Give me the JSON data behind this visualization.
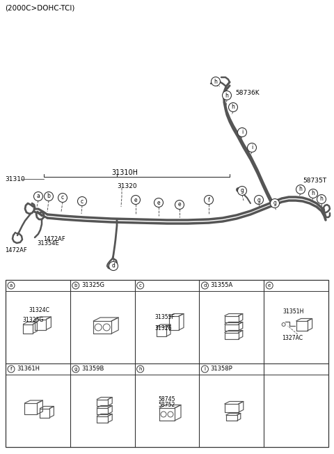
{
  "title": "(2000C>DOHC-TCI)",
  "bg_color": "#ffffff",
  "line_color": "#555555",
  "text_color": "#000000",
  "main_label": "31310H",
  "left_label": "31310",
  "mid_label": "31320",
  "label_58736K": "58736K",
  "label_58735T": "58735T",
  "label_1472AF_top": "1472AF",
  "label_1472AF_bot": "1472AF",
  "label_31354E": "31354E",
  "table_cells_row0": [
    {
      "id": "a",
      "part": "",
      "sub_labels": [
        "31324C",
        "31325G"
      ]
    },
    {
      "id": "b",
      "part": "31325G",
      "sub_labels": []
    },
    {
      "id": "c",
      "part": "",
      "sub_labels": [
        "31355F",
        "31326"
      ]
    },
    {
      "id": "d",
      "part": "31355A",
      "sub_labels": []
    },
    {
      "id": "e",
      "part": "",
      "sub_labels": [
        "31351H",
        "1327AC"
      ]
    }
  ],
  "table_cells_row1": [
    {
      "id": "f",
      "part": "31361H",
      "sub_labels": []
    },
    {
      "id": "g",
      "part": "31359B",
      "sub_labels": []
    },
    {
      "id": "h",
      "part": "",
      "sub_labels": [
        "58745",
        "58752"
      ]
    },
    {
      "id": "i",
      "part": "31358P",
      "sub_labels": []
    },
    {
      "id": null,
      "part": null,
      "sub_labels": []
    }
  ]
}
